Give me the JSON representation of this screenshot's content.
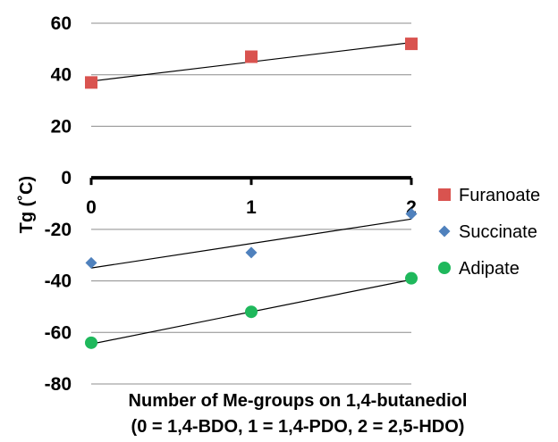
{
  "chart_data": {
    "type": "scatter",
    "xlabel_lines": [
      "Number of Me-groups on 1,4-butanediol",
      "(0 = 1,4-BDO, 1 = 1,4-PDO, 2 = 2,5-HDO)"
    ],
    "ylabel": "Tg (˚C)",
    "x_ticks": [
      "0",
      "1",
      "2"
    ],
    "y_ticks": [
      "60",
      "40",
      "20",
      "0",
      "-20",
      "-40",
      "-60",
      "-80"
    ],
    "xlim": [
      0,
      2
    ],
    "ylim": [
      -80,
      60
    ],
    "grid": "horizontal",
    "legend_position": "right",
    "series": [
      {
        "name": "Furanoate",
        "marker": "square",
        "color": "#d9534f",
        "x": [
          0,
          1,
          2
        ],
        "y": [
          37,
          47,
          52
        ],
        "trendline": [
          37.5,
          52.5
        ]
      },
      {
        "name": "Succinate",
        "marker": "diamond",
        "color": "#4f81bd",
        "x": [
          0,
          1,
          2
        ],
        "y": [
          -33,
          -29,
          -14
        ],
        "trendline": [
          -35,
          -16
        ]
      },
      {
        "name": "Adipate",
        "marker": "circle",
        "color": "#1fb85c",
        "x": [
          0,
          1,
          2
        ],
        "y": [
          -64,
          -52,
          -39
        ],
        "trendline": [
          -64.5,
          -39.5
        ]
      }
    ]
  }
}
